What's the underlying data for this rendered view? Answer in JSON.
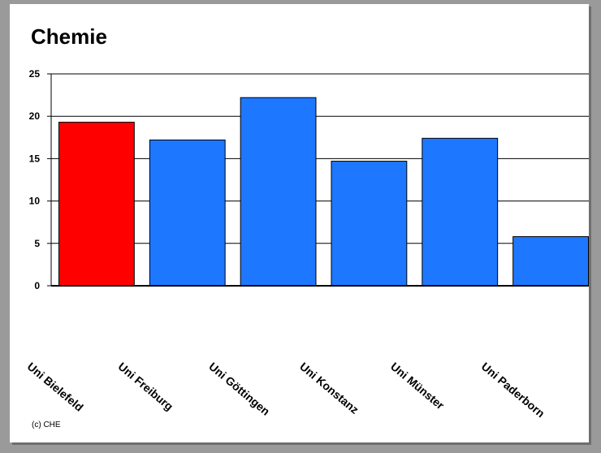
{
  "chart_data": {
    "type": "bar",
    "title": "Chemie",
    "categories": [
      "Uni Bielefeld",
      "Uni Freiburg",
      "Uni Göttingen",
      "Uni Konstanz",
      "Uni Münster",
      "Uni Paderborn"
    ],
    "values": [
      19.3,
      17.2,
      22.2,
      14.7,
      17.4,
      5.8
    ],
    "bar_colors": [
      "#ff0000",
      "#1e78ff",
      "#1e78ff",
      "#1e78ff",
      "#1e78ff",
      "#1e78ff"
    ],
    "ylim": [
      0,
      25
    ],
    "yticks": [
      0,
      5,
      10,
      15,
      20,
      25
    ],
    "grid": true,
    "xlabel": "",
    "ylabel": ""
  },
  "footer": {
    "copyright": "(c) CHE"
  }
}
